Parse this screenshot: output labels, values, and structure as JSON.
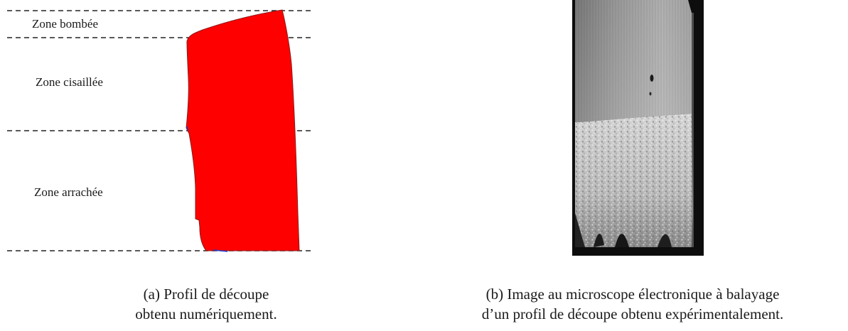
{
  "panel_a": {
    "zones": {
      "bombee": "Zone bombée",
      "cisaillee": "Zone cisaillée",
      "arrachee": "Zone arrachée"
    },
    "profile_color": "#ff0000",
    "caption_line1": "(a) Profil de découpe",
    "caption_line2": "obtenu numériquement."
  },
  "panel_b": {
    "caption_line1": "(b) Image au microscope électronique à balayage",
    "caption_line2": "d’un profil de découpe obtenu expérimentalement."
  }
}
